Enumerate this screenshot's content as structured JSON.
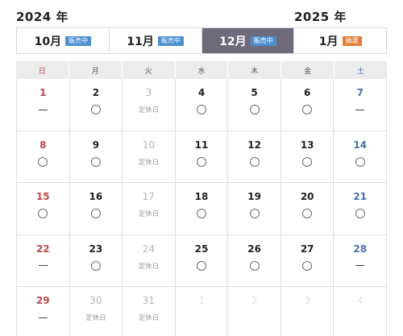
{
  "years": {
    "left": "2024 年",
    "right": "2025 年"
  },
  "tabs": [
    {
      "month": "10月",
      "badge": "販売中",
      "badge_color": "#4a8fd0",
      "active": false
    },
    {
      "month": "11月",
      "badge": "販売中",
      "badge_color": "#4a8fd0",
      "active": false
    },
    {
      "month": "12月",
      "badge": "販売中",
      "badge_color": "#4a8fd0",
      "active": true
    },
    {
      "month": "1月",
      "badge": "抽選",
      "badge_color": "#e07f3a",
      "active": false
    }
  ],
  "weekdays": [
    {
      "label": "日",
      "color": "#b84a4a"
    },
    {
      "label": "月",
      "color": "#555555"
    },
    {
      "label": "火",
      "color": "#555555"
    },
    {
      "label": "水",
      "color": "#555555"
    },
    {
      "label": "木",
      "color": "#555555"
    },
    {
      "label": "金",
      "color": "#555555"
    },
    {
      "label": "土",
      "color": "#4a72a8"
    }
  ],
  "colors": {
    "sunday": "#b84a4a",
    "saturday": "#4a72a8",
    "weekday": "#222222",
    "disabled": "#b5b5b5",
    "outside": "#e0e0e0",
    "active_tab_bg": "#6f6a7a"
  },
  "closed_label": "定休日",
  "weeks": [
    [
      {
        "day": "1",
        "status": "dash",
        "kind": "sun"
      },
      {
        "day": "2",
        "status": "circle",
        "kind": "normal"
      },
      {
        "day": "3",
        "status": "closed",
        "kind": "disabled"
      },
      {
        "day": "4",
        "status": "circle",
        "kind": "normal"
      },
      {
        "day": "5",
        "status": "circle",
        "kind": "normal"
      },
      {
        "day": "6",
        "status": "circle",
        "kind": "normal"
      },
      {
        "day": "7",
        "status": "dash",
        "kind": "sat"
      }
    ],
    [
      {
        "day": "8",
        "status": "circle",
        "kind": "sun"
      },
      {
        "day": "9",
        "status": "circle",
        "kind": "normal"
      },
      {
        "day": "10",
        "status": "closed",
        "kind": "disabled"
      },
      {
        "day": "11",
        "status": "circle",
        "kind": "normal"
      },
      {
        "day": "12",
        "status": "circle",
        "kind": "normal"
      },
      {
        "day": "13",
        "status": "circle",
        "kind": "normal"
      },
      {
        "day": "14",
        "status": "circle",
        "kind": "sat"
      }
    ],
    [
      {
        "day": "15",
        "status": "circle",
        "kind": "sun"
      },
      {
        "day": "16",
        "status": "circle",
        "kind": "normal"
      },
      {
        "day": "17",
        "status": "closed",
        "kind": "disabled"
      },
      {
        "day": "18",
        "status": "circle",
        "kind": "normal"
      },
      {
        "day": "19",
        "status": "circle",
        "kind": "normal"
      },
      {
        "day": "20",
        "status": "circle",
        "kind": "normal"
      },
      {
        "day": "21",
        "status": "circle",
        "kind": "sat"
      }
    ],
    [
      {
        "day": "22",
        "status": "dash",
        "kind": "sun"
      },
      {
        "day": "23",
        "status": "circle",
        "kind": "normal"
      },
      {
        "day": "24",
        "status": "closed",
        "kind": "disabled"
      },
      {
        "day": "25",
        "status": "circle",
        "kind": "normal"
      },
      {
        "day": "26",
        "status": "circle",
        "kind": "normal"
      },
      {
        "day": "27",
        "status": "circle",
        "kind": "normal"
      },
      {
        "day": "28",
        "status": "dash",
        "kind": "sat"
      }
    ],
    [
      {
        "day": "29",
        "status": "dash",
        "kind": "sun"
      },
      {
        "day": "30",
        "status": "closed",
        "kind": "disabled"
      },
      {
        "day": "31",
        "status": "closed",
        "kind": "disabled"
      },
      {
        "day": "1",
        "status": "none",
        "kind": "outside"
      },
      {
        "day": "2",
        "status": "none",
        "kind": "outside"
      },
      {
        "day": "3",
        "status": "none",
        "kind": "outside"
      },
      {
        "day": "4",
        "status": "none",
        "kind": "outside"
      }
    ]
  ]
}
